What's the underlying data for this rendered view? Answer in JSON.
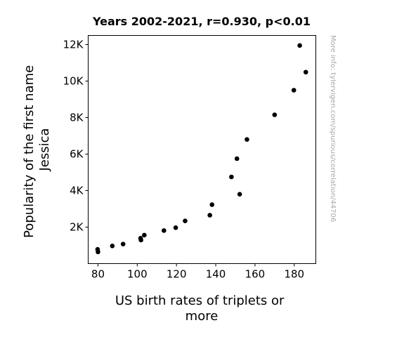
{
  "chart_data": {
    "type": "scatter",
    "title": "Years 2002-2021, r=0.930, p<0.01",
    "xlabel_lines": [
      "US birth rates of triplets or",
      "more"
    ],
    "ylabel_lines": [
      "Popularity of the first name",
      "Jessica"
    ],
    "watermark": "More info: tylervigen.com/spurious/correlation/44706",
    "xlim": [
      75,
      191
    ],
    "ylim": [
      0,
      12500
    ],
    "grid": false,
    "legend": "none",
    "marker_color": "#000000",
    "x_ticks": [
      {
        "value": 80,
        "label": "80"
      },
      {
        "value": 100,
        "label": "100"
      },
      {
        "value": 120,
        "label": "120"
      },
      {
        "value": 140,
        "label": "140"
      },
      {
        "value": 160,
        "label": "160"
      },
      {
        "value": 180,
        "label": "180"
      }
    ],
    "y_ticks": [
      {
        "value": 2000,
        "label": "2K"
      },
      {
        "value": 4000,
        "label": "4K"
      },
      {
        "value": 6000,
        "label": "6K"
      },
      {
        "value": 8000,
        "label": "8K"
      },
      {
        "value": 10000,
        "label": "10K"
      },
      {
        "value": 12000,
        "label": "12K"
      }
    ],
    "points": [
      {
        "x": 182.8,
        "y": 11950
      },
      {
        "x": 185.9,
        "y": 10490
      },
      {
        "x": 179.8,
        "y": 9500
      },
      {
        "x": 170.0,
        "y": 8150
      },
      {
        "x": 155.9,
        "y": 6800
      },
      {
        "x": 150.8,
        "y": 5750
      },
      {
        "x": 148.0,
        "y": 4750
      },
      {
        "x": 152.2,
        "y": 3800
      },
      {
        "x": 138.1,
        "y": 3230
      },
      {
        "x": 137.0,
        "y": 2650
      },
      {
        "x": 124.4,
        "y": 2340
      },
      {
        "x": 119.6,
        "y": 1970
      },
      {
        "x": 113.6,
        "y": 1810
      },
      {
        "x": 103.6,
        "y": 1560
      },
      {
        "x": 101.7,
        "y": 1390
      },
      {
        "x": 101.9,
        "y": 1290
      },
      {
        "x": 92.8,
        "y": 1070
      },
      {
        "x": 87.3,
        "y": 970
      },
      {
        "x": 79.8,
        "y": 780
      },
      {
        "x": 80.0,
        "y": 640
      }
    ]
  }
}
